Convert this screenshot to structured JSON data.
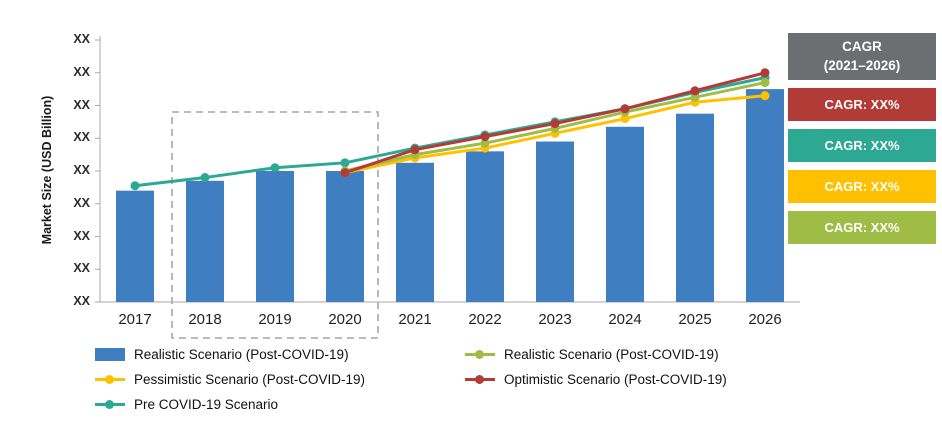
{
  "chart_data": {
    "type": "combo bar + line",
    "title": "",
    "ylabel": "Market Size (USD Billion)",
    "ylim": [
      0,
      8
    ],
    "y_tick_labels": [
      "XX",
      "XX",
      "XX",
      "XX",
      "XX",
      "XX",
      "XX",
      "XX",
      "XX"
    ],
    "categories": [
      "2017",
      "2018",
      "2019",
      "2020",
      "2021",
      "2022",
      "2023",
      "2024",
      "2025",
      "2026"
    ],
    "bar_series": {
      "name": "Realistic Scenario (Post-COVID-19)",
      "color": "#3E7EC1",
      "values": [
        3.4,
        3.7,
        4.0,
        4.0,
        4.25,
        4.6,
        4.9,
        5.35,
        5.75,
        6.5
      ]
    },
    "line_series": [
      {
        "name": "Pre COVID-19 Scenario",
        "color": "#2CA893",
        "start_year": "2017",
        "values": [
          3.55,
          3.8,
          4.1,
          4.25,
          4.7,
          5.1,
          5.5,
          5.9,
          6.4,
          6.85
        ]
      },
      {
        "name": "Pessimistic Scenario (Post-COVID-19)",
        "color": "#FFC000",
        "start_year": "2020",
        "values": [
          3.95,
          4.4,
          4.7,
          5.15,
          5.6,
          6.1,
          6.3
        ]
      },
      {
        "name": "Realistic Scenario (Post-COVID-19)",
        "color": "#9EBC46",
        "start_year": "2020",
        "values": [
          4.0,
          4.5,
          4.85,
          5.3,
          5.8,
          6.25,
          6.7
        ]
      },
      {
        "name": "Optimistic Scenario (Post-COVID-19)",
        "color": "#B23B37",
        "start_year": "2020",
        "values": [
          3.95,
          4.65,
          5.05,
          5.45,
          5.9,
          6.45,
          7.0
        ]
      }
    ],
    "highlight_years": [
      "2018",
      "2019",
      "2020"
    ],
    "grid": "off",
    "legend_position": "bottom"
  },
  "cagr_panel": {
    "header_line1": "CAGR",
    "header_line2": "(2021–2026)",
    "header_bg": "#6D6E71",
    "items": [
      {
        "label": "CAGR: XX%",
        "color": "#B23B37"
      },
      {
        "label": "CAGR: XX%",
        "color": "#2CA893"
      },
      {
        "label": "CAGR: XX%",
        "color": "#FFC000"
      },
      {
        "label": "CAGR: XX%",
        "color": "#9EBC46"
      }
    ]
  },
  "legend": {
    "col1": [
      {
        "label": "Realistic Scenario (Post-COVID-19)",
        "marker": "bar",
        "color": "#3E7EC1"
      },
      {
        "label": "Pessimistic Scenario (Post-COVID-19)",
        "marker": "line",
        "color": "#FFC000"
      },
      {
        "label": "Pre COVID-19 Scenario",
        "marker": "line",
        "color": "#2CA893"
      }
    ],
    "col2": [
      {
        "label": "Realistic Scenario (Post-COVID-19)",
        "marker": "line",
        "color": "#9EBC46"
      },
      {
        "label": "Optimistic Scenario (Post-COVID-19)",
        "marker": "line",
        "color": "#B23B37"
      }
    ]
  }
}
